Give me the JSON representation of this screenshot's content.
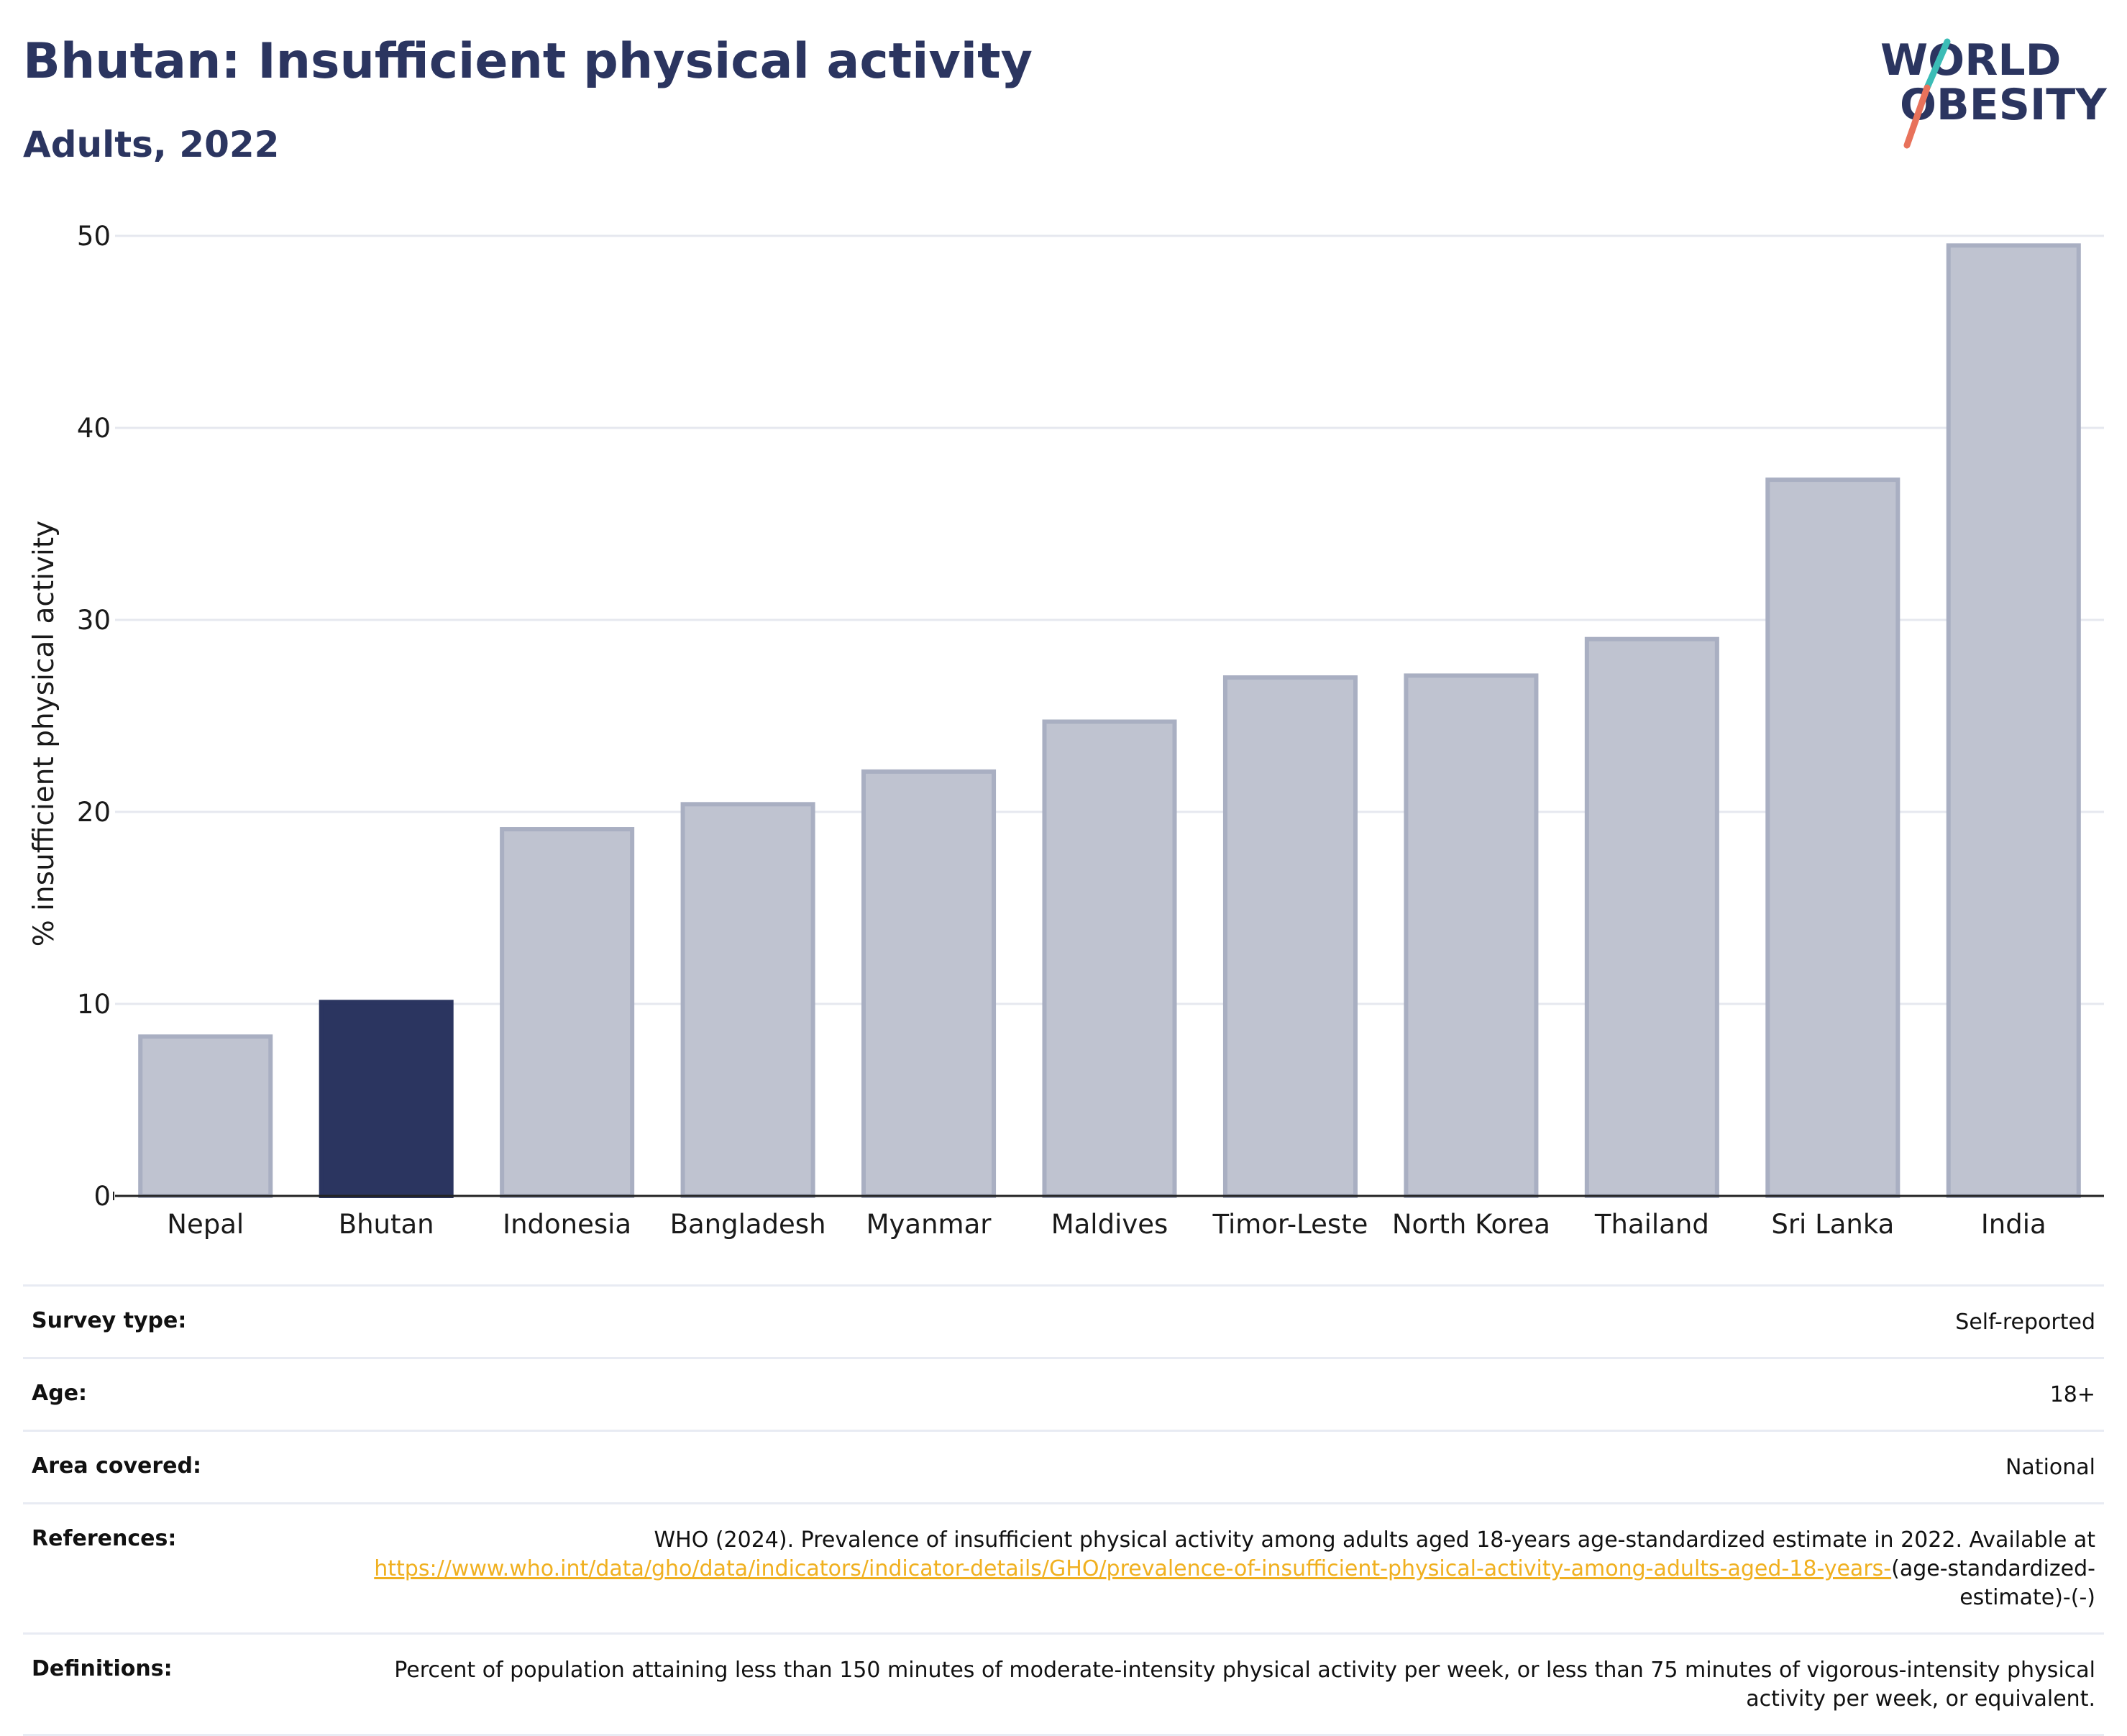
{
  "header": {
    "title": "Bhutan: Insufficient physical activity",
    "subtitle": "Adults, 2022"
  },
  "logo": {
    "line1": "WORLD",
    "line2": "OBESITY",
    "text_color": "#2b3560",
    "slash_color_top": "#3bbcb6",
    "slash_color_bottom": "#e8725b"
  },
  "chart_data": {
    "type": "bar",
    "categories": [
      "Nepal",
      "Bhutan",
      "Indonesia",
      "Bangladesh",
      "Myanmar",
      "Maldives",
      "Timor-Leste",
      "North Korea",
      "Thailand",
      "Sri Lanka",
      "India"
    ],
    "values": [
      8.3,
      10.1,
      19.1,
      20.4,
      22.1,
      24.7,
      27.0,
      27.1,
      29.0,
      37.3,
      49.5
    ],
    "highlight": "Bhutan",
    "ylabel": "% insufficient physical activity",
    "xlabel": "",
    "ylim": [
      0,
      50
    ],
    "yticks": [
      0,
      10,
      20,
      30,
      40,
      50
    ],
    "grid": true,
    "colors": {
      "bar": "#bfc3d0",
      "bar_border": "#a9afc2",
      "highlight": "#2b3560",
      "grid": "#e6e8ef",
      "axis": "#222222"
    }
  },
  "info": {
    "survey_type": {
      "label": "Survey type:",
      "value": "Self-reported"
    },
    "age": {
      "label": "Age:",
      "value": "18+"
    },
    "area": {
      "label": "Area covered:",
      "value": "National"
    },
    "references": {
      "label": "References:",
      "text": "WHO (2024). Prevalence of insufficient physical activity among adults aged 18-years age-standardized estimate in 2022. Available at",
      "link": "https://www.who.int/data/gho/data/indicators/indicator-details/GHO/prevalence-of-insufficient-physical-activity-among-adults-aged-18-years-",
      "suffix": "(age-standardized-estimate)-(-)"
    },
    "definitions": {
      "label": "Definitions:",
      "value": "Percent of population attaining less than 150 minutes of moderate-intensity physical activity per week, or less than 75 minutes of vigorous-intensity physical activity per week, or equivalent."
    }
  }
}
